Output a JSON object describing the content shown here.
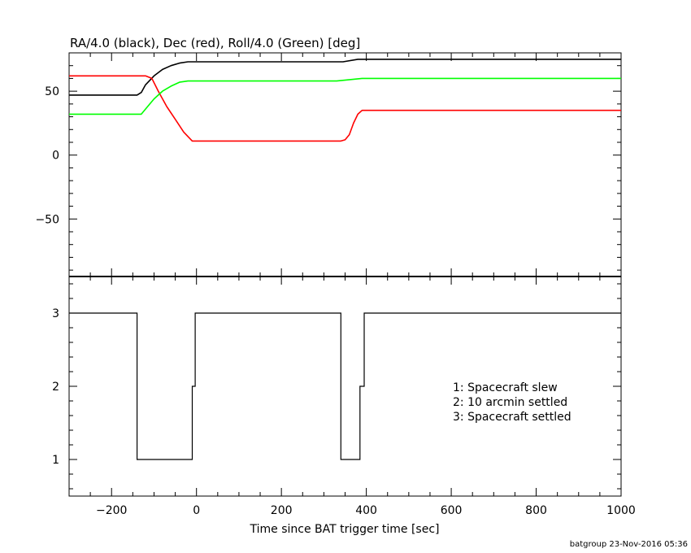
{
  "chart_data": [
    {
      "type": "line",
      "title": "RA/4.0 (black), Dec (red), Roll/4.0 (Green) [deg]",
      "xlim": [
        -300,
        1000
      ],
      "ylim": [
        -95,
        80
      ],
      "y_ticks": [
        50,
        0,
        -50
      ],
      "y_tick_labels": [
        "50",
        "0",
        "−50"
      ],
      "series": [
        {
          "color": "#000000",
          "x": [
            -300,
            -140,
            -130,
            -120,
            -100,
            -80,
            -60,
            -40,
            -20,
            -5,
            335,
            345,
            380,
            395,
            1000
          ],
          "y": [
            47,
            47,
            49,
            55,
            62,
            67,
            70,
            72,
            73,
            73,
            73,
            73,
            75,
            75,
            75
          ]
        },
        {
          "color": "#ff0000",
          "x": [
            -300,
            -120,
            -105,
            -90,
            -70,
            -50,
            -30,
            -10,
            340,
            350,
            360,
            370,
            380,
            390,
            400,
            1000
          ],
          "y": [
            62,
            62,
            60,
            50,
            38,
            28,
            18,
            11,
            11,
            12,
            16,
            25,
            32,
            35,
            35,
            35
          ]
        },
        {
          "color": "#00ff00",
          "x": [
            -300,
            -130,
            -120,
            -100,
            -80,
            -60,
            -40,
            -20,
            -5,
            330,
            390,
            1000
          ],
          "y": [
            32,
            32,
            36,
            44,
            50,
            54,
            57,
            58,
            58,
            58,
            60,
            60
          ]
        }
      ]
    },
    {
      "type": "line",
      "xlabel": "Time since BAT trigger time [sec]",
      "xlim": [
        -300,
        1000
      ],
      "ylim": [
        0.5,
        3.5
      ],
      "x_ticks": [
        -200,
        0,
        200,
        400,
        600,
        800,
        1000
      ],
      "x_tick_labels": [
        "−200",
        "0",
        "200",
        "400",
        "600",
        "800",
        "1000"
      ],
      "y_ticks": [
        3,
        2,
        1
      ],
      "y_tick_labels": [
        "3",
        "2",
        "1"
      ],
      "legend_position": "lower-right",
      "legend": [
        "1: Spacecraft slew",
        "2: 10 arcmin settled",
        "3: Spacecraft settled"
      ],
      "series": [
        {
          "color": "#000000",
          "x": [
            -300,
            -140,
            -140,
            -10,
            -10,
            -3,
            -3,
            340,
            340,
            385,
            385,
            395,
            395,
            1000
          ],
          "y": [
            3,
            3,
            1,
            1,
            2,
            2,
            3,
            3,
            1,
            1,
            2,
            2,
            3,
            3
          ]
        }
      ]
    }
  ],
  "footer": "batgroup 23-Nov-2016 05:36"
}
